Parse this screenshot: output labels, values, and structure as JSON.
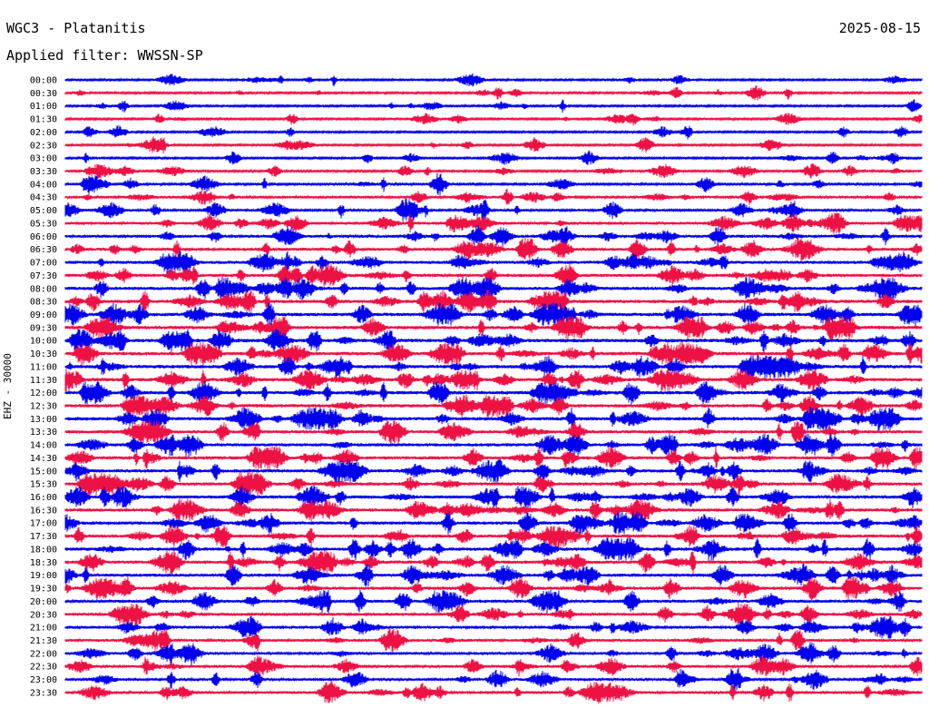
{
  "header": {
    "title": "WGC3 - Platanitis",
    "date": "2025-08-15",
    "filter": "Applied filter: WWSSN-SP"
  },
  "channel_label": "EHZ - 30000",
  "colors": {
    "trace_a": "#0000ee",
    "trace_b": "#ee1144",
    "background": "#ffffff"
  },
  "chart_data": {
    "type": "line",
    "title": "WGC3 - Platanitis",
    "subtitle": "Applied filter: WWSSN-SP",
    "ylabel": "EHZ - 30000",
    "grid": false,
    "rows": [
      "00:00",
      "00:30",
      "01:00",
      "01:30",
      "02:00",
      "02:30",
      "03:00",
      "03:30",
      "04:00",
      "04:30",
      "05:00",
      "05:30",
      "06:00",
      "06:30",
      "07:00",
      "07:30",
      "08:00",
      "08:30",
      "09:00",
      "09:30",
      "10:00",
      "10:30",
      "11:00",
      "11:30",
      "12:00",
      "12:30",
      "13:00",
      "13:30",
      "14:00",
      "14:30",
      "15:00",
      "15:30",
      "16:00",
      "16:30",
      "17:00",
      "17:30",
      "18:00",
      "18:30",
      "19:00",
      "19:30",
      "20:00",
      "20:30",
      "21:00",
      "21:30",
      "22:00",
      "22:30",
      "23:00",
      "23:30"
    ],
    "row_colors": [
      "trace_a",
      "trace_b"
    ],
    "row_activity": [
      0.15,
      0.18,
      0.15,
      0.18,
      0.14,
      0.2,
      0.16,
      0.22,
      0.28,
      0.35,
      0.35,
      0.45,
      0.5,
      0.55,
      0.6,
      0.62,
      0.65,
      0.68,
      0.7,
      0.72,
      0.75,
      0.72,
      0.72,
      0.7,
      0.7,
      0.7,
      0.68,
      0.62,
      0.6,
      0.62,
      0.62,
      0.62,
      0.64,
      0.64,
      0.66,
      0.66,
      0.66,
      0.66,
      0.62,
      0.58,
      0.56,
      0.52,
      0.5,
      0.45,
      0.42,
      0.42,
      0.4,
      0.45
    ]
  }
}
